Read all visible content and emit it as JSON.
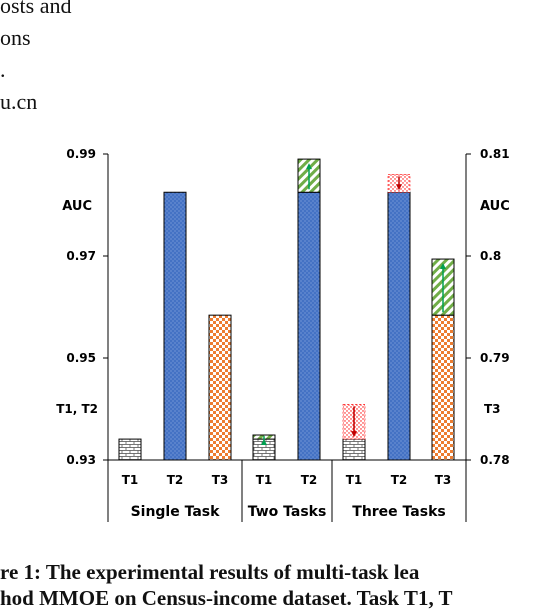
{
  "text_fragments": [
    "osts and",
    "ons",
    ".",
    "u.cn"
  ],
  "caption": {
    "line1": "re 1: The experimental results of multi-task lea",
    "line2": "hod MMOE on Census-income dataset. Task T1, T"
  },
  "chart_data": {
    "type": "bar",
    "left_axis": {
      "label": "AUC",
      "range": [
        0.93,
        0.99
      ],
      "ticks": [
        {
          "v": 0.99,
          "t": "0.99"
        },
        {
          "v": 0.97,
          "t": "0.97"
        },
        {
          "v": 0.95,
          "t": "0.95"
        },
        {
          "v": 0.93,
          "t": "0.93"
        }
      ],
      "note": "T1, T2",
      "note_value": 0.94
    },
    "right_axis": {
      "label": "AUC",
      "range": [
        0.78,
        0.81
      ],
      "ticks": [
        {
          "v": 0.81,
          "t": "0.81"
        },
        {
          "v": 0.8,
          "t": "0.8"
        },
        {
          "v": 0.79,
          "t": "0.79"
        },
        {
          "v": 0.78,
          "t": "0.78"
        }
      ],
      "note": "T3",
      "note_value": 0.785
    },
    "groups": [
      {
        "label": "Single Task",
        "bars": [
          {
            "task": "T1",
            "axis": "left",
            "value": 0.9341,
            "pattern": "brick"
          },
          {
            "task": "T2",
            "axis": "left",
            "value": 0.9825,
            "pattern": "dots"
          },
          {
            "task": "T3",
            "axis": "right",
            "value": 0.7942,
            "pattern": "checker"
          }
        ]
      },
      {
        "label": "Two Tasks",
        "bars": [
          {
            "task": "T1",
            "axis": "left",
            "value": 0.9341,
            "change": 0.0008,
            "direction": "up",
            "pattern": "brick"
          },
          {
            "task": "T2",
            "axis": "left",
            "value": 0.9825,
            "change": 0.0065,
            "direction": "up",
            "pattern": "dots"
          }
        ]
      },
      {
        "label": "Three Tasks",
        "bars": [
          {
            "task": "T1",
            "axis": "left",
            "value": 0.9341,
            "change": 0.0068,
            "direction": "down",
            "pattern": "brick"
          },
          {
            "task": "T2",
            "axis": "left",
            "value": 0.9825,
            "change": 0.0035,
            "direction": "down",
            "pattern": "dots"
          },
          {
            "task": "T3",
            "axis": "right",
            "value": 0.7942,
            "change": 0.0055,
            "direction": "up",
            "pattern": "checker"
          }
        ]
      }
    ],
    "colors": {
      "t2_fill": "#4472c4",
      "t3_fill": "#ed7d31",
      "gain_fill": "#70ad47",
      "loss_fill": "#ff0000"
    }
  }
}
